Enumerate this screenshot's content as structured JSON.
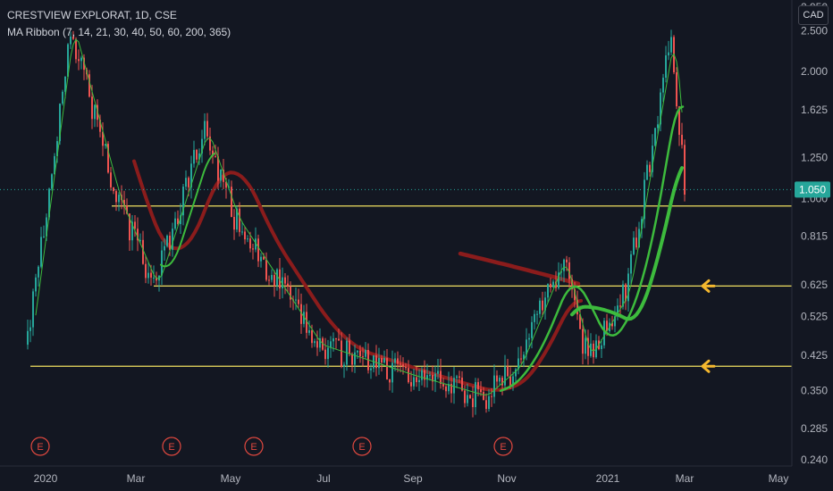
{
  "header": {
    "symbol_line": "CRESTVIEW EXPLORAT, 1D, CSE",
    "indicator_line": "MA Ribbon (7, 14, 21, 30, 40, 50, 60, 200, 365)",
    "currency": "CAD"
  },
  "colors": {
    "background": "#131722",
    "up": "#26a69a",
    "down": "#ef5350",
    "ma_long": "#8b1c1c",
    "ma_green": "#3dbb3d",
    "support": "#f0e060",
    "arrow": "#f5b82e",
    "earnings": "#e0483f",
    "axis_text": "#b2b5be"
  },
  "chart_data": {
    "type": "candlestick",
    "y_scale": "log",
    "ylim": [
      0.232,
      2.9
    ],
    "y_ticks": [
      "2.500",
      "2.000",
      "1.625",
      "1.250",
      "1.000",
      "0.815",
      "0.625",
      "0.525",
      "0.425",
      "0.350",
      "0.285",
      "0.240"
    ],
    "y_tick_top_partial": "2.950",
    "x_labels": [
      "2020",
      "Mar",
      "May",
      "Jul",
      "Sep",
      "Nov",
      "2021",
      "Mar",
      "May"
    ],
    "current_price": "1.050",
    "support_levels": [
      0.96,
      0.62,
      0.4
    ],
    "arrow_levels": [
      0.62,
      0.4
    ],
    "earnings_label": "E",
    "earnings_count": 6,
    "key_prices": [
      {
        "period": "Dec 2019",
        "price": 0.45
      },
      {
        "period": "Jan 2020 high",
        "price": 2.55
      },
      {
        "period": "Feb 2020",
        "price": 1.0
      },
      {
        "period": "Mar 2020 low",
        "price": 0.62
      },
      {
        "period": "Apr 2020 high",
        "price": 1.45
      },
      {
        "period": "May 2020",
        "price": 0.9
      },
      {
        "period": "Jul 2020",
        "price": 0.45
      },
      {
        "period": "Sep 2020",
        "price": 0.38
      },
      {
        "period": "Oct 2020 low",
        "price": 0.34
      },
      {
        "period": "Nov 2020",
        "price": 0.4
      },
      {
        "period": "Dec 2020 high",
        "price": 0.72
      },
      {
        "period": "Dec 2020",
        "price": 0.42
      },
      {
        "period": "Jan 2021",
        "price": 0.6
      },
      {
        "period": "Feb 2021 high",
        "price": 2.45
      },
      {
        "period": "Mar 2021",
        "price": 1.05
      }
    ]
  }
}
